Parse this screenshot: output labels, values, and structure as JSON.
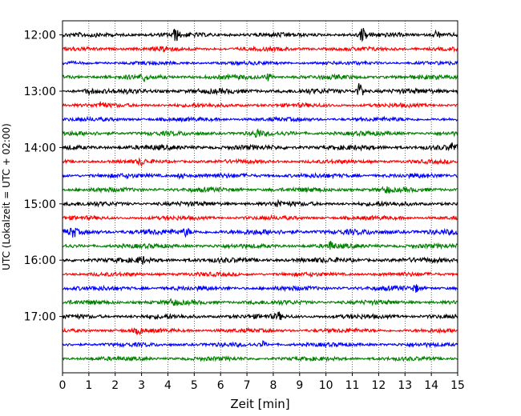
{
  "chart_data": {
    "type": "line",
    "title": "",
    "xlabel": "Zeit  [min]",
    "ylabel": "UTC (Lokalzeit = UTC + 02:00)",
    "xlim": [
      0,
      15
    ],
    "xticks": [
      0,
      1,
      2,
      3,
      4,
      5,
      6,
      7,
      8,
      9,
      10,
      11,
      12,
      13,
      14,
      15
    ],
    "ylim": [
      "11:45",
      "18:00"
    ],
    "yticks": [
      "12:00",
      "13:00",
      "14:00",
      "15:00",
      "16:00",
      "17:00"
    ],
    "grid": "vertical dotted",
    "trace_interval_min": 15,
    "trace_color_cycle": [
      "#000000",
      "#ff0000",
      "#0000ff",
      "#008000"
    ],
    "traces": [
      {
        "start": "12:00",
        "color": "#000000",
        "amp": 1.0,
        "events": [
          {
            "t": 4.3,
            "a": 2.6
          },
          {
            "t": 11.4,
            "a": 3.2
          },
          {
            "t": 14.2,
            "a": 2.2
          }
        ]
      },
      {
        "start": "12:15",
        "color": "#ff0000",
        "amp": 0.9,
        "events": [
          {
            "t": 3.9,
            "a": 1.4
          }
        ]
      },
      {
        "start": "12:30",
        "color": "#0000ff",
        "amp": 0.8,
        "events": []
      },
      {
        "start": "12:45",
        "color": "#008000",
        "amp": 1.0,
        "events": [
          {
            "t": 3.1,
            "a": 1.5
          },
          {
            "t": 7.8,
            "a": 1.6
          }
        ]
      },
      {
        "start": "13:00",
        "color": "#000000",
        "amp": 1.1,
        "events": [
          {
            "t": 1.0,
            "a": 1.6
          },
          {
            "t": 11.3,
            "a": 4.2
          }
        ]
      },
      {
        "start": "13:15",
        "color": "#ff0000",
        "amp": 0.9,
        "events": [
          {
            "t": 1.5,
            "a": 1.4
          }
        ]
      },
      {
        "start": "13:30",
        "color": "#0000ff",
        "amp": 0.9,
        "events": []
      },
      {
        "start": "13:45",
        "color": "#008000",
        "amp": 1.0,
        "events": [
          {
            "t": 7.4,
            "a": 1.9
          }
        ]
      },
      {
        "start": "14:00",
        "color": "#000000",
        "amp": 1.1,
        "events": [
          {
            "t": 14.8,
            "a": 1.6
          }
        ]
      },
      {
        "start": "14:15",
        "color": "#ff0000",
        "amp": 0.9,
        "events": [
          {
            "t": 3.0,
            "a": 1.5
          }
        ]
      },
      {
        "start": "14:30",
        "color": "#0000ff",
        "amp": 1.0,
        "events": [
          {
            "t": 4.5,
            "a": 1.4
          }
        ]
      },
      {
        "start": "14:45",
        "color": "#008000",
        "amp": 1.0,
        "events": [
          {
            "t": 12.3,
            "a": 1.4
          }
        ]
      },
      {
        "start": "15:00",
        "color": "#000000",
        "amp": 1.0,
        "events": [
          {
            "t": 8.2,
            "a": 1.5
          }
        ]
      },
      {
        "start": "15:15",
        "color": "#ff0000",
        "amp": 0.9,
        "events": []
      },
      {
        "start": "15:30",
        "color": "#0000ff",
        "amp": 1.2,
        "events": [
          {
            "t": 0.4,
            "a": 2.0
          },
          {
            "t": 4.7,
            "a": 1.6
          }
        ]
      },
      {
        "start": "15:45",
        "color": "#008000",
        "amp": 1.0,
        "events": [
          {
            "t": 10.2,
            "a": 1.9
          }
        ]
      },
      {
        "start": "16:00",
        "color": "#000000",
        "amp": 1.1,
        "events": [
          {
            "t": 3.0,
            "a": 1.5
          }
        ]
      },
      {
        "start": "16:15",
        "color": "#ff0000",
        "amp": 0.9,
        "events": []
      },
      {
        "start": "16:30",
        "color": "#0000ff",
        "amp": 1.0,
        "events": [
          {
            "t": 13.4,
            "a": 1.6
          }
        ]
      },
      {
        "start": "16:45",
        "color": "#008000",
        "amp": 1.0,
        "events": [
          {
            "t": 4.2,
            "a": 1.3
          }
        ]
      },
      {
        "start": "17:00",
        "color": "#000000",
        "amp": 1.0,
        "events": [
          {
            "t": 8.2,
            "a": 1.5
          }
        ]
      },
      {
        "start": "17:15",
        "color": "#ff0000",
        "amp": 0.9,
        "events": [
          {
            "t": 2.9,
            "a": 1.4
          }
        ]
      },
      {
        "start": "17:30",
        "color": "#0000ff",
        "amp": 0.9,
        "events": [
          {
            "t": 7.6,
            "a": 1.3
          }
        ]
      },
      {
        "start": "17:45",
        "color": "#008000",
        "amp": 0.9,
        "events": []
      }
    ]
  }
}
